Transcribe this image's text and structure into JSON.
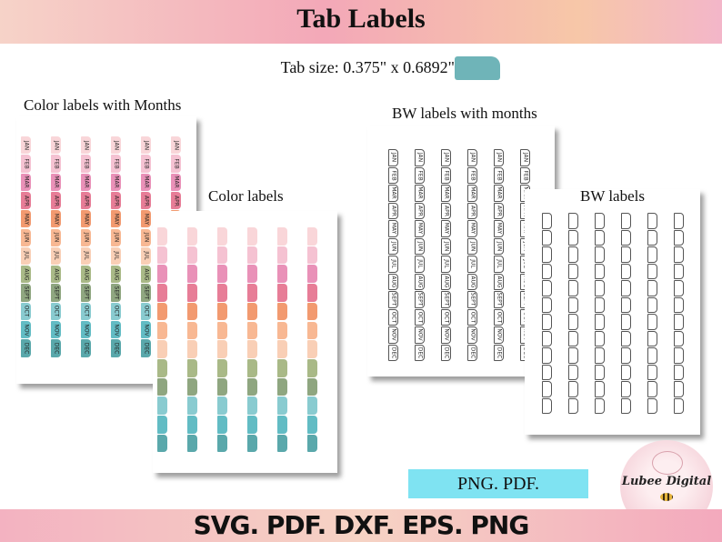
{
  "title": "Tab Labels",
  "tab_size": "Tab size: 0.375\" x 0.6892\"",
  "headings": {
    "color_months": "Color labels with Months",
    "color": "Color labels",
    "bw_months": "BW labels with months",
    "bw": "BW labels"
  },
  "months": [
    "JAN",
    "FEB",
    "MAR",
    "APR",
    "MAY",
    "JUN",
    "JUL",
    "AUG",
    "SEPT",
    "OCT",
    "NOV",
    "DEC"
  ],
  "palette": [
    "#f9d6d9",
    "#f5c2d2",
    "#e991b8",
    "#e77d97",
    "#f29a70",
    "#f8b893",
    "#f9cfb6",
    "#a9b987",
    "#8fa680",
    "#89cbd0",
    "#62bcc4",
    "#5aa8ab"
  ],
  "accent_swatch": "#6fb4b8",
  "badge": "PNG. PDF.",
  "formats": "SVG. PDF. DXF. EPS. PNG",
  "logo": {
    "text": "Lubee Digital",
    "icons": [
      "rose-icon",
      "bee-icon"
    ]
  }
}
